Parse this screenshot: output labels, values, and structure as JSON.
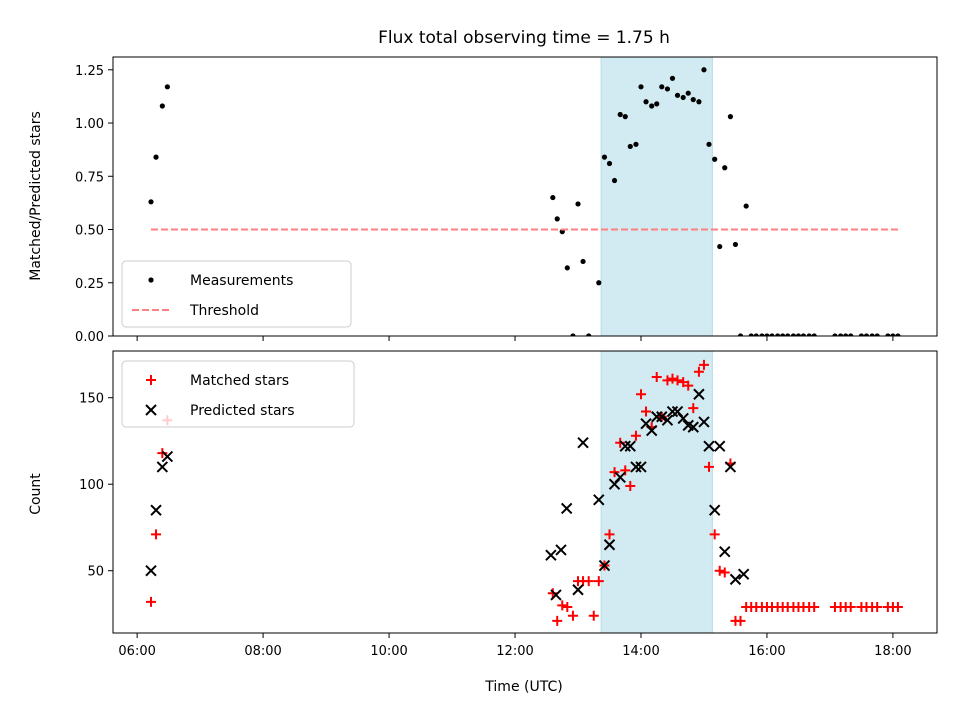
{
  "chart_data": {
    "title": "Flux total observing time = 1.75 h",
    "xlabel": "Time (UTC)",
    "x_unit": "hours UTC",
    "xlim": [
      "05:37",
      "18:42"
    ],
    "xticks": [
      "06:00",
      "08:00",
      "10:00",
      "12:00",
      "14:00",
      "16:00",
      "18:00"
    ],
    "highlight_interval": {
      "start": "13:22",
      "end": "15:08",
      "color": "#add8e6"
    },
    "panels": [
      {
        "type": "scatter",
        "ylabel": "Matched/Predicted stars",
        "ylim": [
          0,
          1.31
        ],
        "yticks": [
          "0.00",
          "0.25",
          "0.50",
          "0.75",
          "1.00",
          "1.25"
        ],
        "legend_position": "lower-left",
        "series": [
          {
            "name": "Measurements",
            "color": "#000000",
            "marker": "dot",
            "x": [
              6.22,
              6.3,
              6.4,
              6.48,
              12.6,
              12.67,
              12.75,
              12.83,
              12.92,
              13.0,
              13.08,
              13.17,
              13.33,
              13.42,
              13.5,
              13.58,
              13.67,
              13.75,
              13.83,
              13.92,
              14.0,
              14.08,
              14.17,
              14.25,
              14.33,
              14.42,
              14.5,
              14.58,
              14.67,
              14.75,
              14.83,
              14.92,
              15.0,
              15.08,
              15.17,
              15.25,
              15.33,
              15.42,
              15.5,
              15.58,
              15.67,
              15.75,
              15.83,
              15.92,
              16.0,
              16.08,
              16.17,
              16.25,
              16.33,
              16.42,
              16.5,
              16.58,
              16.67,
              16.75,
              17.08,
              17.17,
              17.25,
              17.33,
              17.5,
              17.58,
              17.67,
              17.75,
              17.92,
              18.0,
              18.08
            ],
            "y": [
              0.63,
              0.84,
              1.08,
              1.17,
              0.65,
              0.55,
              0.49,
              0.32,
              0.0,
              0.62,
              0.35,
              0.0,
              0.25,
              0.84,
              0.81,
              0.73,
              1.04,
              1.03,
              0.89,
              0.9,
              1.17,
              1.1,
              1.08,
              1.09,
              1.17,
              1.16,
              1.21,
              1.13,
              1.12,
              1.14,
              1.11,
              1.1,
              1.25,
              0.9,
              0.83,
              0.42,
              0.79,
              1.03,
              0.43,
              0.0,
              0.61,
              0.0,
              0.0,
              0.0,
              0.0,
              0.0,
              0.0,
              0.0,
              0.0,
              0.0,
              0.0,
              0.0,
              0.0,
              0.0,
              0.0,
              0.0,
              0.0,
              0.0,
              0.0,
              0.0,
              0.0,
              0.0,
              0.0,
              0.0,
              0.0
            ]
          },
          {
            "name": "Threshold",
            "color": "#ff8080",
            "style": "dashed",
            "x": [
              6.22,
              18.13
            ],
            "y": [
              0.5,
              0.5
            ]
          }
        ]
      },
      {
        "type": "scatter",
        "ylabel": "Count",
        "ylim": [
          14,
          177
        ],
        "yticks": [
          "50",
          "100",
          "150"
        ],
        "legend_position": "upper-left",
        "series": [
          {
            "name": "Matched stars",
            "color": "#ff0000",
            "marker": "plus",
            "x": [
              6.22,
              6.3,
              6.4,
              6.48,
              12.6,
              12.67,
              12.75,
              12.83,
              12.92,
              13.0,
              13.08,
              13.17,
              13.25,
              13.33,
              13.42,
              13.5,
              13.58,
              13.67,
              13.75,
              13.83,
              13.92,
              14.0,
              14.08,
              14.17,
              14.25,
              14.33,
              14.42,
              14.5,
              14.58,
              14.67,
              14.75,
              14.83,
              14.92,
              15.0,
              15.08,
              15.17,
              15.25,
              15.33,
              15.42,
              15.5,
              15.58,
              15.67,
              15.75,
              15.83,
              15.92,
              16.0,
              16.08,
              16.17,
              16.25,
              16.33,
              16.42,
              16.5,
              16.58,
              16.67,
              16.75,
              17.08,
              17.17,
              17.25,
              17.33,
              17.5,
              17.58,
              17.67,
              17.75,
              17.92,
              18.0,
              18.08
            ],
            "y": [
              32,
              71,
              118,
              137,
              37,
              21,
              30,
              29,
              24,
              44,
              44,
              44,
              24,
              44,
              53,
              71,
              107,
              124,
              108,
              99,
              128,
              152,
              142,
              133,
              162,
              139,
              160,
              161,
              160,
              159,
              157,
              144,
              165,
              169,
              110,
              71,
              50,
              49,
              112,
              21,
              21,
              29,
              29,
              29,
              29,
              29,
              29,
              29,
              29,
              29,
              29,
              29,
              29,
              29,
              29,
              29,
              29,
              29,
              29,
              29,
              29,
              29,
              29,
              29,
              29,
              29
            ]
          },
          {
            "name": "Predicted stars",
            "color": "#000000",
            "marker": "x",
            "x": [
              6.22,
              6.3,
              6.4,
              6.48,
              12.57,
              12.65,
              12.73,
              12.82,
              13.0,
              13.08,
              13.33,
              13.42,
              13.5,
              13.58,
              13.67,
              13.75,
              13.83,
              13.92,
              14.0,
              14.08,
              14.17,
              14.25,
              14.33,
              14.42,
              14.5,
              14.58,
              14.67,
              14.75,
              14.83,
              14.92,
              15.0,
              15.08,
              15.17,
              15.25,
              15.33,
              15.42,
              15.5,
              15.63
            ],
            "y": [
              50,
              85,
              110,
              116,
              59,
              36,
              62,
              86,
              39,
              124,
              91,
              53,
              65,
              100,
              104,
              122,
              122,
              110,
              110,
              135,
              131,
              139,
              139,
              137,
              142,
              142,
              138,
              134,
              133,
              152,
              136,
              122,
              85,
              122,
              61,
              110,
              45,
              48
            ]
          }
        ]
      }
    ]
  }
}
